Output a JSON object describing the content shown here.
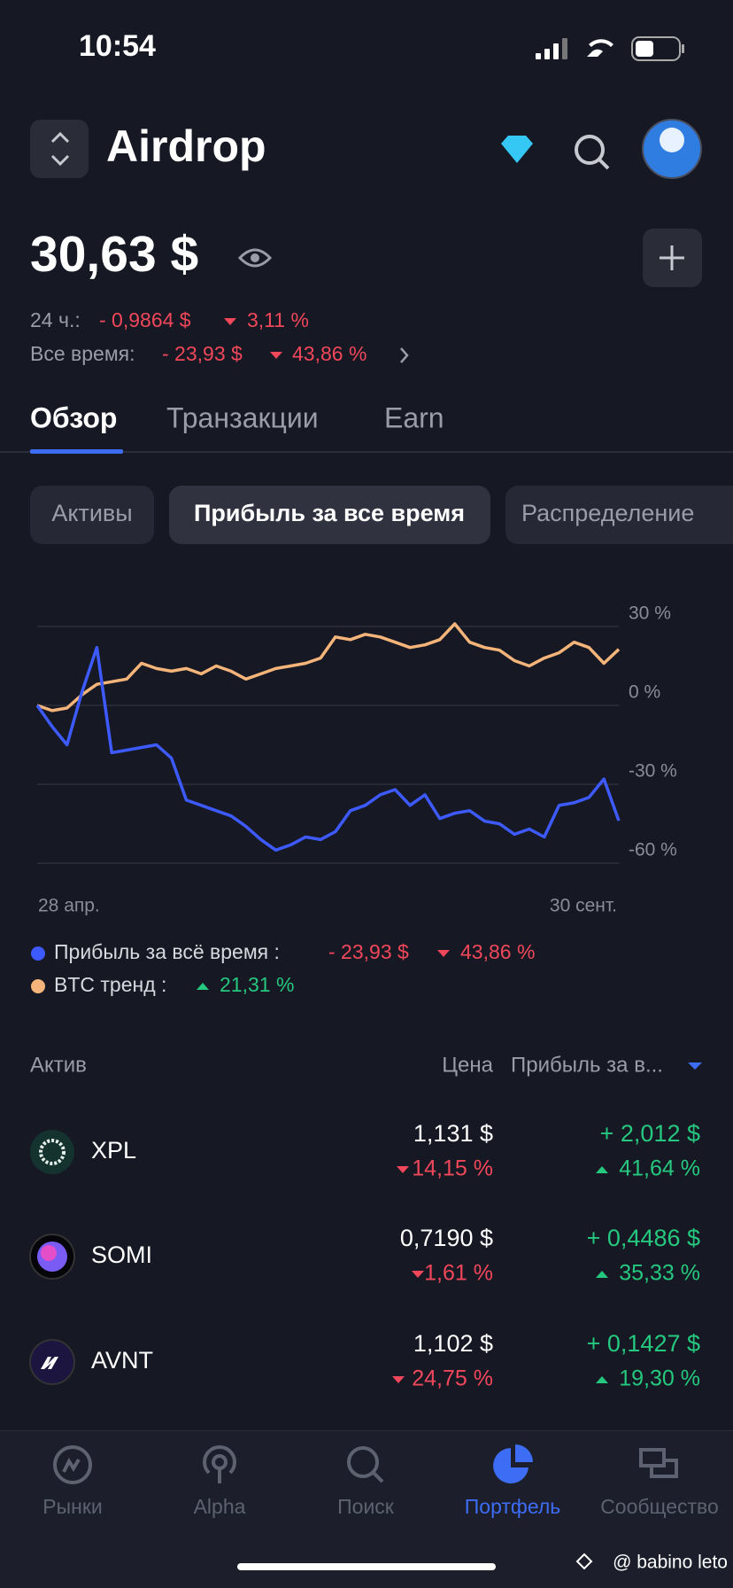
{
  "status_bar": {
    "time": "10:54"
  },
  "header": {
    "title": "Airdrop"
  },
  "balance": {
    "total": "30,63 $",
    "day_label": "24 ч.:",
    "day_change": "- 0,9864 $",
    "day_percent": "3,11 %",
    "all_label": "Все время:",
    "all_change": "- 23,93 $",
    "all_percent": "43,86 %"
  },
  "tabs": [
    "Обзор",
    "Транзакции",
    "Earn"
  ],
  "chips": [
    "Активы",
    "Прибыль за все время",
    "Распределение"
  ],
  "chart_data": {
    "type": "line",
    "categories": [
      "28 апр.",
      null,
      null,
      null,
      null,
      null,
      null,
      null,
      null,
      null,
      null,
      null,
      null,
      null,
      null,
      null,
      null,
      null,
      null,
      null,
      null,
      null,
      null,
      null,
      null,
      null,
      null,
      null,
      null,
      null,
      null,
      null,
      null,
      null,
      null,
      null,
      null,
      null,
      null,
      "30 сент."
    ],
    "series": [
      {
        "name": "Прибыль за всё время :",
        "color": "#3d5afe",
        "values": [
          0,
          -8,
          -15,
          5,
          22,
          -18,
          -17,
          -16,
          -15,
          -20,
          -36,
          -38,
          -40,
          -42,
          -46,
          -51,
          -55,
          -53,
          -50,
          -51,
          -48,
          -40,
          -38,
          -34,
          -32,
          -38,
          -34,
          -43,
          -41,
          -40,
          -44,
          -45,
          -49,
          -47,
          -50,
          -38,
          -37,
          -35,
          -28,
          -43.86
        ],
        "legend_values": [
          "- 23,93 $",
          "43,86 %"
        ]
      },
      {
        "name": "BTC тренд :",
        "color": "#f5b57a",
        "values": [
          0,
          -2,
          -1,
          4,
          8,
          9,
          10,
          16,
          14,
          13,
          14,
          12,
          15,
          13,
          10,
          12,
          14,
          15,
          16,
          18,
          26,
          25,
          27,
          26,
          24,
          22,
          23,
          25,
          31,
          24,
          22,
          21,
          17,
          15,
          18,
          20,
          24,
          22,
          16,
          21.31
        ],
        "legend_values": [
          "21,31 %"
        ]
      }
    ],
    "ylim": [
      -60,
      35
    ],
    "yticks": [
      {
        "value": 30,
        "label": "30 %"
      },
      {
        "value": 0,
        "label": "0 %"
      },
      {
        "value": -30,
        "label": "-30 %"
      },
      {
        "value": -60,
        "label": "-60 %"
      }
    ],
    "grid": true
  },
  "table": {
    "headers": [
      "Актив",
      "Цена",
      "Прибыль за в..."
    ],
    "rows": [
      {
        "name": "XPL",
        "price": "1,131 $",
        "price_change": "14,15 %",
        "profit": "+ 2,012 $",
        "profit_percent": "41,64 %"
      },
      {
        "name": "SOMI",
        "price": "0,7190 $",
        "price_change": "1,61 %",
        "profit": "+ 0,4486 $",
        "profit_percent": "35,33 %"
      },
      {
        "name": "AVNT",
        "price": "1,102 $",
        "price_change": "24,75 %",
        "profit": "+ 0,1427 $",
        "profit_percent": "19,30 %"
      }
    ]
  },
  "nav": [
    "Рынки",
    "Alpha",
    "Поиск",
    "Портфель",
    "Сообщество"
  ],
  "watermark": "@ babino leto"
}
